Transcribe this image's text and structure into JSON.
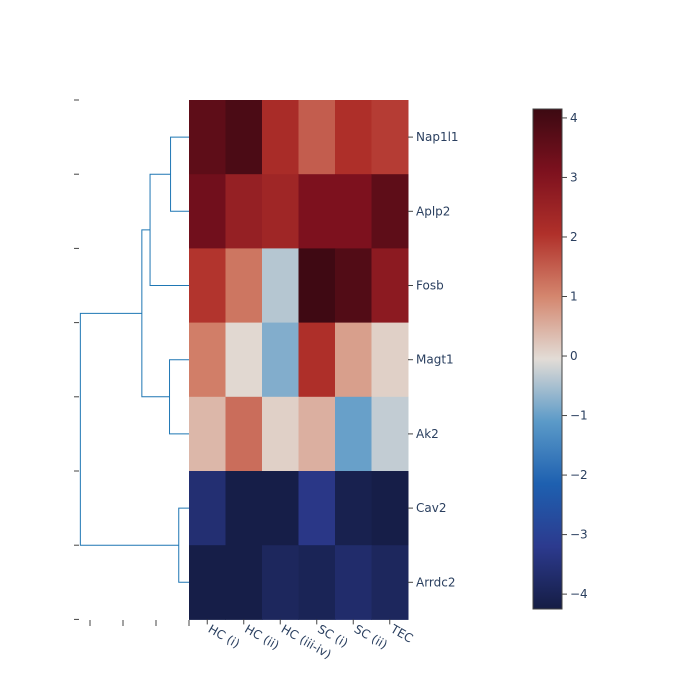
{
  "chart_data": {
    "type": "heatmap",
    "title": "",
    "xlabel": "",
    "ylabel": "",
    "rows": [
      "Nap1l1",
      "Aplp2",
      "Fosb",
      "Magt1",
      "Ak2",
      "Cav2",
      "Arrdc2"
    ],
    "columns": [
      "HC (i)",
      "HC (ii)",
      "HC (iii-iv)",
      "SC (i)",
      "SC (ii)",
      "TEC"
    ],
    "values": [
      [
        3.6,
        3.9,
        2.2,
        1.5,
        2.1,
        1.9
      ],
      [
        3.3,
        2.6,
        2.4,
        3.1,
        3.1,
        3.6
      ],
      [
        2.0,
        1.2,
        -0.4,
        4.1,
        3.8,
        2.8
      ],
      [
        1.1,
        0.0,
        -0.8,
        2.1,
        0.7,
        0.1
      ],
      [
        0.4,
        1.3,
        0.1,
        0.5,
        -1.0,
        -0.3
      ],
      [
        -3.6,
        -4.2,
        -4.2,
        -3.3,
        -4.1,
        -4.2
      ],
      [
        -4.2,
        -4.2,
        -3.9,
        -4.0,
        -3.7,
        -3.9
      ]
    ],
    "zrange": [
      -4.25,
      4.15
    ],
    "colorscale": [
      "#151d44",
      "#2c3a8e",
      "#1e60b0",
      "#5b9ac8",
      "#e2dcd6",
      "#d4866e",
      "#b0302a",
      "#7d111e",
      "#3c0912"
    ],
    "colorbar_ticks": [
      4,
      3,
      2,
      1,
      0,
      -1,
      -2,
      -3,
      -4
    ],
    "colorbar_tick_labels": [
      "4",
      "3",
      "2",
      "1",
      "0",
      "−1",
      "−2",
      "−3",
      "−4"
    ],
    "dendrogram": {
      "color": "#1f77b4",
      "leaf_order": [
        "Nap1l1",
        "Aplp2",
        "Fosb",
        "Magt1",
        "Ak2",
        "Cav2",
        "Arrdc2"
      ],
      "merges": [
        {
          "left": "Nap1l1",
          "right": "Aplp2",
          "height": 0.9
        },
        {
          "left": "Magt1",
          "right": "Ak2",
          "height": 0.95
        },
        {
          "left": "Cav2",
          "right": "Arrdc2",
          "height": 0.5
        },
        {
          "left": "Nap1l1+Aplp2",
          "right": "Fosb",
          "height": 1.9
        },
        {
          "left": "Nap1l1+Aplp2+Fosb",
          "right": "Magt1+Ak2",
          "height": 2.3
        },
        {
          "left": "Nap1l1+Aplp2+Fosb+Magt1+Ak2",
          "right": "Cav2+Arrdc2",
          "height": 5.3
        }
      ]
    }
  }
}
